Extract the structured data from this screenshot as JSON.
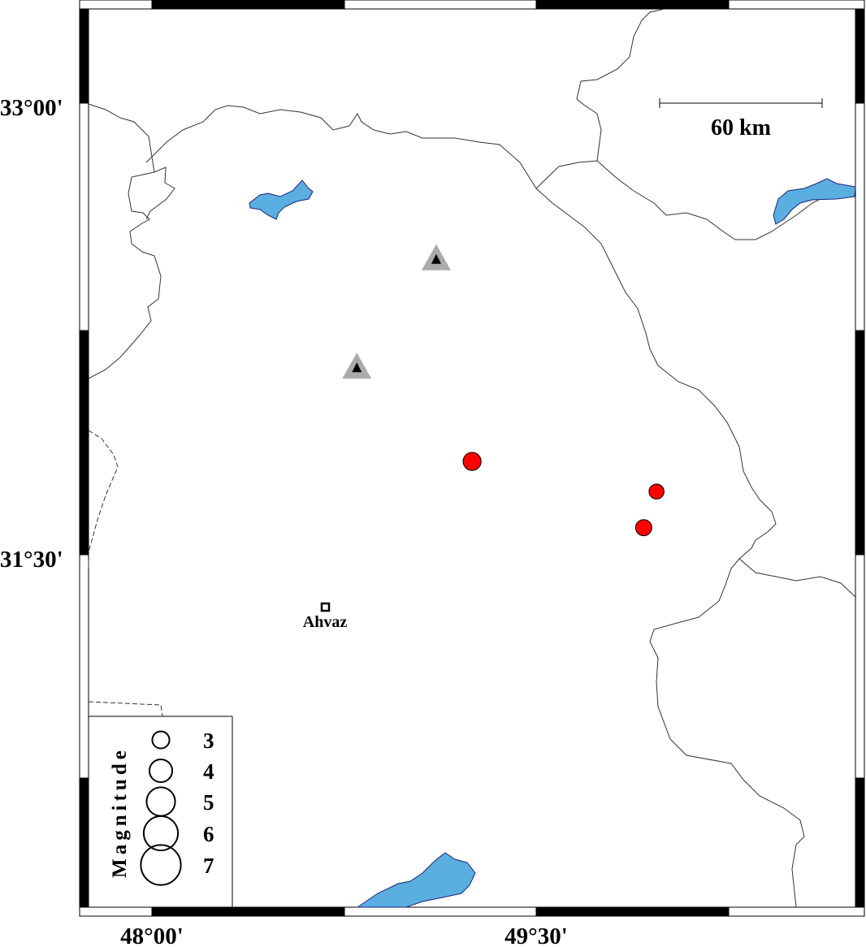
{
  "map": {
    "lon_range": [
      "47°45'",
      "50°45'"
    ],
    "lat_range": [
      "30°45'",
      "33°20'"
    ],
    "x_ticks": [
      {
        "label": "48°00'",
        "lon": 48.0
      },
      {
        "label": "49°30'",
        "lon": 49.5
      }
    ],
    "y_ticks": [
      {
        "label": "33°00'",
        "lat": 33.0
      },
      {
        "label": "31°30'",
        "lat": 31.5
      }
    ],
    "scale_bar": {
      "label": "60 km"
    },
    "city": {
      "name": "Ahvaz",
      "lon": 48.68,
      "lat": 31.33
    },
    "stations": [
      {
        "lon": 49.11,
        "lat": 32.48
      },
      {
        "lon": 48.8,
        "lat": 32.12
      }
    ],
    "events": [
      {
        "lon": 49.25,
        "lat": 31.81,
        "magnitude": 3.0
      },
      {
        "lon": 49.97,
        "lat": 31.71,
        "magnitude": 2.5
      },
      {
        "lon": 49.92,
        "lat": 31.59,
        "magnitude": 2.7
      }
    ],
    "colors": {
      "event": "#ff0000",
      "station_outer": "#aaaaaa",
      "station_inner": "#000000",
      "water": "#5aaee0",
      "water_edge": "#1a237e"
    }
  },
  "legend": {
    "title": "Magnitude",
    "items": [
      {
        "label": "3",
        "magnitude": 3
      },
      {
        "label": "4",
        "magnitude": 4
      },
      {
        "label": "5",
        "magnitude": 5
      },
      {
        "label": "6",
        "magnitude": 6
      },
      {
        "label": "7",
        "magnitude": 7
      }
    ]
  }
}
